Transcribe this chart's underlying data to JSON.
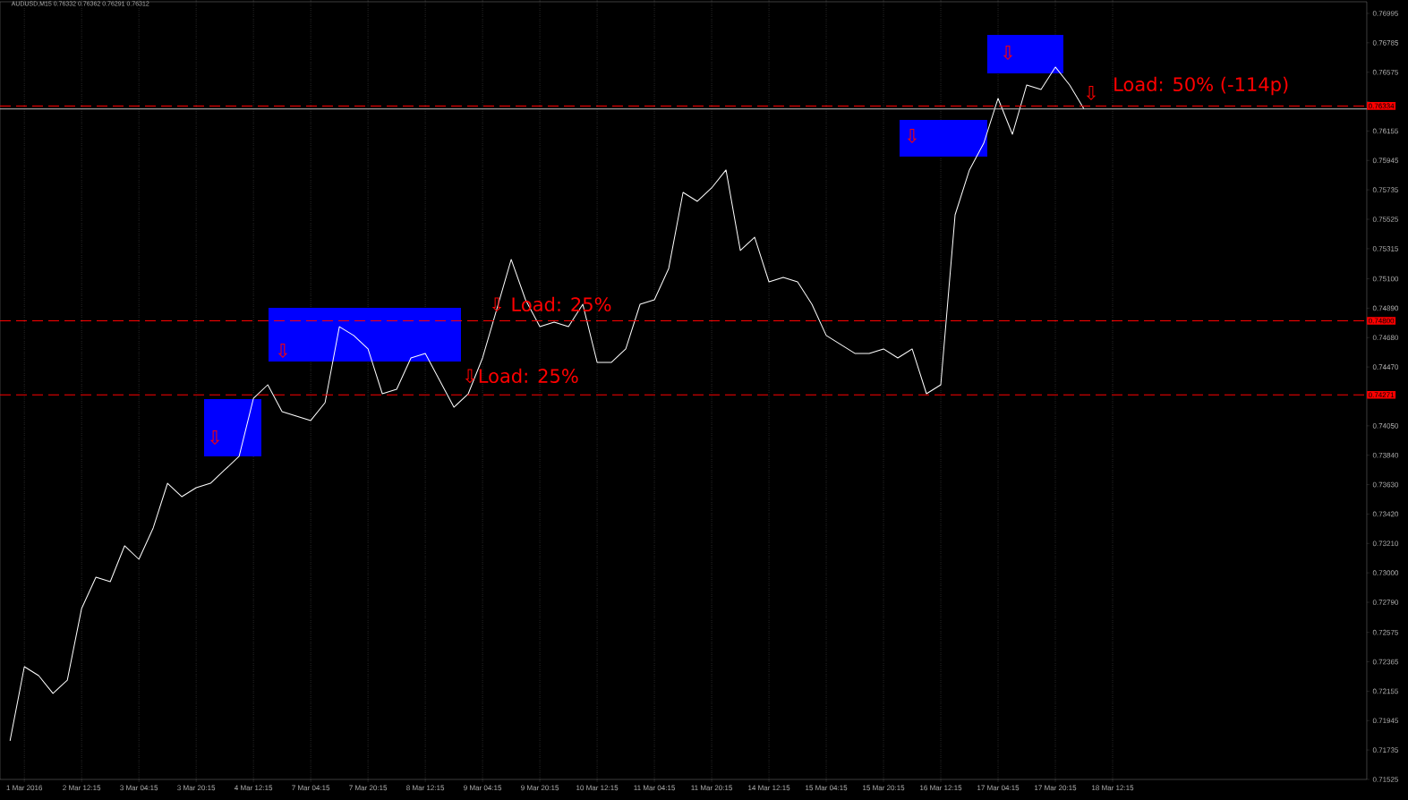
{
  "chart_data": {
    "type": "line",
    "title": "AUDUSD,M15  0.76332 0.76362 0.76291 0.76312",
    "categories": [
      null,
      "1 Mar 2016",
      null,
      null,
      null,
      "2 Mar 12:15",
      null,
      null,
      null,
      "3 Mar 04:15",
      null,
      null,
      null,
      "3 Mar 20:15",
      null,
      null,
      null,
      "4 Mar 12:15",
      null,
      null,
      null,
      "7 Mar 04:15",
      null,
      null,
      null,
      "7 Mar 20:15",
      null,
      null,
      null,
      "8 Mar 12:15",
      null,
      null,
      null,
      "9 Mar 04:15",
      null,
      null,
      null,
      "9 Mar 20:15",
      null,
      null,
      null,
      "10 Mar 12:15",
      null,
      null,
      null,
      "11 Mar 04:15",
      null,
      null,
      null,
      "11 Mar 20:15",
      null,
      null,
      null,
      "14 Mar 12:15",
      null,
      null,
      null,
      "15 Mar 04:15",
      null,
      null,
      null,
      "15 Mar 20:15",
      null,
      null,
      null,
      "16 Mar 12:15",
      null,
      null,
      null,
      "17 Mar 04:15",
      null,
      null,
      null,
      "17 Mar 20:15",
      null,
      null,
      null,
      "18 Mar 12:15",
      null,
      null,
      null,
      null,
      null,
      null,
      null,
      null,
      null,
      null,
      null,
      null,
      null,
      null,
      null,
      null,
      null
    ],
    "series": [
      {
        "color": "#ffffff",
        "values": [
          0.718,
          0.7233,
          0.72266,
          0.72139,
          0.72234,
          0.72746,
          0.72969,
          0.72937,
          0.73193,
          0.73097,
          0.73321,
          0.7364,
          0.73544,
          0.73608,
          0.7364,
          0.73736,
          0.73832,
          0.74247,
          0.74343,
          0.74151,
          0.74119,
          0.74088,
          0.74215,
          0.74758,
          0.74695,
          0.74599,
          0.74279,
          0.74311,
          0.74535,
          0.74567,
          0.74375,
          0.74183,
          0.74279,
          0.74535,
          0.74886,
          0.75238,
          0.7495,
          0.74758,
          0.7479,
          0.74758,
          0.74918,
          0.74503,
          0.74503,
          0.74599,
          0.74918,
          0.7495,
          0.75174,
          0.75717,
          0.75653,
          0.75749,
          0.75877,
          0.75302,
          0.75397,
          0.75078,
          0.7511,
          0.75078,
          0.74918,
          0.74695,
          0.74631,
          0.74567,
          0.74567,
          0.74599,
          0.74535,
          0.74599,
          0.74279,
          0.74343,
          0.75557,
          0.75877,
          0.76068,
          0.76388,
          0.76132,
          0.76484,
          0.76452,
          0.76612,
          0.76484,
          0.76312,
          null,
          null,
          null,
          null,
          null,
          null,
          null,
          null,
          null,
          null,
          null,
          null,
          null,
          null,
          null,
          null,
          null,
          null,
          null
        ]
      }
    ],
    "ylim": [
      0.71525,
      0.77078
    ],
    "yticks": [
      0.71525,
      0.71735,
      0.71945,
      0.72155,
      0.72365,
      0.72575,
      {
        "value": 0.7279,
        "label": "0.72790"
      },
      {
        "value": 0.73,
        "label": "0.73000"
      },
      {
        "value": 0.7321,
        "label": "0.73210"
      },
      {
        "value": 0.7342,
        "label": "0.73420"
      },
      {
        "value": 0.7363,
        "label": "0.73630"
      },
      {
        "value": 0.7384,
        "label": "0.73840"
      },
      {
        "value": 0.7405,
        "label": "0.74050"
      },
      {
        "value": 0.7426,
        "label": null
      },
      {
        "value": 0.7447,
        "label": "0.74470"
      },
      {
        "value": 0.7468,
        "label": "0.74680"
      },
      {
        "value": 0.7489,
        "label": "0.74890"
      },
      {
        "value": 0.751,
        "label": "0.75100"
      },
      0.75315,
      0.75525,
      0.75735,
      0.75945,
      0.76155,
      {
        "value": 0.76365,
        "label": null
      },
      0.76575,
      0.76785,
      0.76995
    ],
    "bands": [
      {
        "axis": "y",
        "from": 0.73832,
        "to": 0.74241,
        "color": "#0000ff"
      },
      {
        "axis": "y",
        "from": 0.74509,
        "to": 0.74893,
        "color": "#0000ff"
      },
      {
        "axis": "y",
        "from": 0.75973,
        "to": 0.76235,
        "color": "#0000ff"
      },
      {
        "axis": "y",
        "from": 0.76567,
        "to": 0.76842,
        "color": "#0000ff"
      }
    ],
    "ref_lines": [
      {
        "axis": "y",
        "value": 0.76312,
        "color": "#c0c0c0",
        "line_style": "solid"
      },
      {
        "axis": "y",
        "value": 0.76334,
        "label": "0.76334",
        "color": "#ff0000",
        "line_style": "dashed"
      },
      {
        "axis": "y",
        "value": 0.748,
        "label": "0.74800",
        "color": "#ff0000",
        "line_style": "dashed"
      },
      {
        "axis": "y",
        "value": 0.74271,
        "label": "0.74271",
        "color": "#ff0000",
        "line_style": "dashed"
      }
    ],
    "annotations": [
      "⇩",
      "⇩",
      "⇩Load: 25%",
      "⇩ Load: 25%",
      "⇩",
      "⇩",
      "⇩",
      "Load: 50% (-114p)"
    ],
    "grid": "x"
  }
}
